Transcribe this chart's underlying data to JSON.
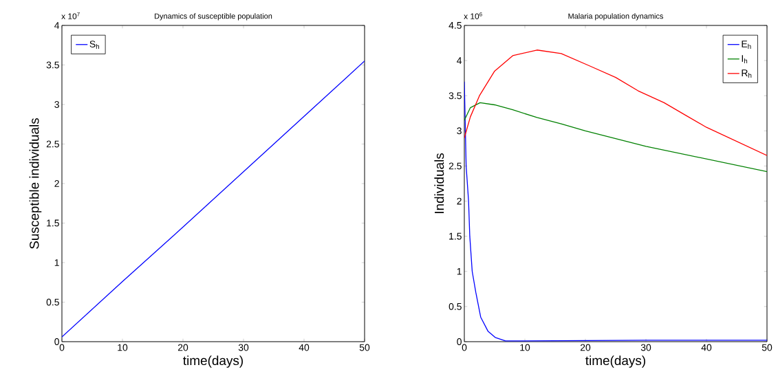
{
  "chart_data": [
    {
      "type": "line",
      "title": "Dynamics of susceptible population",
      "xlabel": "time(days)",
      "ylabel": "Susceptible individuals",
      "annotations": [
        "x 10$^{7}$"
      ],
      "xlim": [
        0,
        50
      ],
      "ylim": [
        0,
        4
      ],
      "xticks": [
        0,
        10,
        20,
        30,
        40,
        50
      ],
      "yticks": [
        0,
        0.5,
        1,
        1.5,
        2,
        2.5,
        3,
        3.5,
        4
      ],
      "legend": "top left",
      "grid": false,
      "marker": "none",
      "line_style": "solid",
      "series": [
        {
          "name": "S$_{h}$",
          "color": "#0000ff",
          "x": [
            0,
            10,
            20,
            30,
            40,
            50
          ],
          "values": [
            0.06,
            0.76,
            1.45,
            2.15,
            2.85,
            3.55
          ]
        }
      ]
    },
    {
      "type": "line",
      "title": "Malaria population dynamics",
      "xlabel": "time(days)",
      "ylabel": "Individuals",
      "annotations": [
        "x 10$^{6}$"
      ],
      "xlim": [
        0,
        50
      ],
      "ylim": [
        0,
        4.5
      ],
      "xticks": [
        0,
        10,
        20,
        30,
        40,
        50
      ],
      "yticks": [
        0,
        0.5,
        1,
        1.5,
        2,
        2.5,
        3,
        3.5,
        4,
        4.5
      ],
      "legend": "top right",
      "grid": false,
      "marker": "none",
      "line_style": "solid",
      "series": [
        {
          "name": "E$_{h}$",
          "color": "#0000ff",
          "x": [
            0,
            0.3,
            0.7,
            0.9,
            1.3,
            1.9,
            2.7,
            3.9,
            5.1,
            6.8,
            10,
            30,
            50
          ],
          "values": [
            3.7,
            2.5,
            2.0,
            1.5,
            1.0,
            0.7,
            0.35,
            0.15,
            0.06,
            0.01,
            0.01,
            0.02,
            0.02
          ]
        },
        {
          "name": "I$_{h}$",
          "color": "#008000",
          "x": [
            0,
            1,
            2.6,
            5,
            8,
            12,
            16,
            20,
            25,
            30,
            35,
            40,
            45,
            50
          ],
          "values": [
            3.15,
            3.33,
            3.4,
            3.37,
            3.3,
            3.19,
            3.1,
            3.0,
            2.89,
            2.78,
            2.69,
            2.6,
            2.51,
            2.42
          ]
        },
        {
          "name": "R$_{h}$",
          "color": "#ff0000",
          "x": [
            0,
            1,
            2.5,
            5,
            8,
            12,
            16,
            20.8,
            25,
            28.7,
            33,
            36.6,
            40,
            45,
            50
          ],
          "values": [
            2.9,
            3.2,
            3.5,
            3.85,
            4.07,
            4.15,
            4.1,
            3.92,
            3.76,
            3.57,
            3.4,
            3.22,
            3.05,
            2.85,
            2.65
          ]
        }
      ]
    }
  ]
}
